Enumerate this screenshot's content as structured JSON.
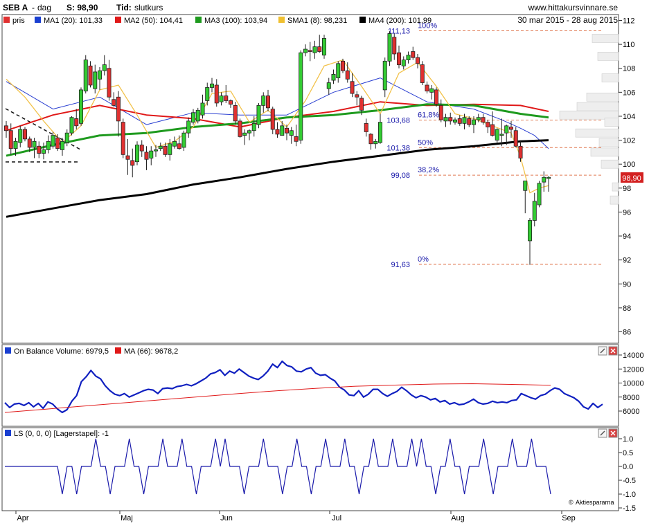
{
  "header": {
    "ticker": "SEB A",
    "separator": "-",
    "interval": "dag",
    "close_label": "S: 98,90",
    "mode_label": "Tid:",
    "mode_value": "slutkurs",
    "site": "www.hittakursvinnare.se",
    "date_range": "30 mar 2015 - 28 aug 2015"
  },
  "legend": [
    {
      "label": "pris",
      "color": "#e03030"
    },
    {
      "label": "MA1 (20): 101,33",
      "color": "#1a3fd1"
    },
    {
      "label": "MA2 (50): 104,41",
      "color": "#e01818"
    },
    {
      "label": "MA3 (100): 103,94",
      "color": "#1e9a1e"
    },
    {
      "label": "SMA1 (8): 98,231",
      "color": "#f0c030"
    },
    {
      "label": "MA4 (200): 101,99",
      "color": "#000000"
    }
  ],
  "colors": {
    "up": "#33cc33",
    "down": "#e03030",
    "ma20": "#2a3fd1",
    "ma50": "#e01818",
    "ma100": "#1e9a1e",
    "sma8": "#f2c24a",
    "ma200": "#000000",
    "obv": "#1020c0",
    "obv_ma": "#e01818",
    "ls": "#1a1aaa",
    "fib_line": "#e07850",
    "fib_text": "#1a1aaa",
    "price_badge": "#d32020"
  },
  "last_price": "98,90",
  "fibonacci": [
    {
      "price": 111.13,
      "price_label": "111,13",
      "pct_label": "100%"
    },
    {
      "price": 103.68,
      "price_label": "103,68",
      "pct_label": "61,8%"
    },
    {
      "price": 101.38,
      "price_label": "101,38",
      "pct_label": "50%"
    },
    {
      "price": 99.08,
      "price_label": "99,08",
      "pct_label": "38,2%"
    },
    {
      "price": 91.63,
      "price_label": "91,63",
      "pct_label": "0%"
    }
  ],
  "x_months": [
    "Apr",
    "Maj",
    "Jun",
    "Jul",
    "Aug",
    "Sep"
  ],
  "obv_panel": {
    "title": "On Balance Volume: 6979,5",
    "ma_title": "MA (66): 9678,2",
    "ticks": [
      "14000",
      "12000",
      "10000",
      "8000",
      "6000"
    ]
  },
  "ls_panel": {
    "title": "LS (0, 0, 0) [Lagerstapel]: -1",
    "ticks": [
      "1.0",
      "0.5",
      "0.0",
      "-0.5",
      "-1.0",
      "-1.5"
    ],
    "credit": "Aktiespararna"
  },
  "chart_data": {
    "type": "candlestick",
    "title": "SEB A - dag",
    "xlabel": "",
    "ylabel": "",
    "y_range": [
      85,
      112
    ],
    "y_ticks": [
      86,
      88,
      90,
      92,
      94,
      96,
      98,
      100,
      102,
      104,
      106,
      108,
      110,
      112
    ],
    "y_tick_labels": [
      "86",
      "88",
      "90",
      "92",
      "94",
      "96",
      "98",
      "100",
      "102",
      "104",
      "106",
      "108",
      "110",
      "112"
    ],
    "last": 98.9,
    "candles": [
      [
        103.2,
        103.6,
        102.2,
        102.8
      ],
      [
        102.8,
        103.4,
        100.8,
        101.3
      ],
      [
        101.3,
        102.2,
        100.7,
        101.9
      ],
      [
        101.8,
        103.2,
        101.4,
        102.9
      ],
      [
        102.9,
        103.1,
        101.9,
        102.1
      ],
      [
        102.1,
        102.3,
        101.0,
        101.4
      ],
      [
        101.4,
        102.2,
        100.5,
        101.9
      ],
      [
        101.5,
        101.9,
        100.5,
        100.9
      ],
      [
        100.9,
        101.8,
        100.4,
        101.2
      ],
      [
        101.2,
        102.4,
        100.9,
        101.9
      ],
      [
        101.5,
        102.7,
        101.3,
        102.4
      ],
      [
        102.2,
        102.5,
        101.1,
        101.3
      ],
      [
        101.2,
        102.2,
        100.7,
        101.9
      ],
      [
        101.8,
        102.9,
        101.5,
        102.6
      ],
      [
        102.6,
        104.0,
        102.4,
        103.9
      ],
      [
        103.8,
        104.6,
        102.9,
        103.2
      ],
      [
        103.4,
        106.4,
        103.2,
        106.2
      ],
      [
        106.1,
        109.1,
        105.9,
        108.7
      ],
      [
        108.2,
        108.6,
        106.4,
        106.6
      ],
      [
        106.3,
        108.3,
        105.9,
        107.7
      ],
      [
        107.1,
        108.1,
        106.2,
        107.8
      ],
      [
        107.8,
        109.1,
        107.4,
        108.3
      ],
      [
        108.0,
        108.7,
        105.3,
        105.6
      ],
      [
        105.4,
        106.0,
        104.8,
        104.9
      ],
      [
        105.6,
        106.1,
        102.3,
        103.6
      ],
      [
        103.5,
        103.8,
        100.5,
        100.8
      ],
      [
        100.7,
        102.1,
        99.1,
        100.4
      ],
      [
        100.3,
        101.3,
        98.9,
        99.9
      ],
      [
        100.2,
        101.9,
        99.9,
        101.6
      ],
      [
        101.6,
        102.0,
        100.6,
        101.1
      ],
      [
        101.0,
        101.5,
        99.5,
        100.4
      ],
      [
        100.5,
        101.5,
        99.9,
        101.1
      ],
      [
        101.1,
        101.6,
        100.6,
        101.2
      ],
      [
        101.3,
        101.8,
        101.1,
        101.5
      ],
      [
        101.5,
        101.8,
        100.6,
        100.8
      ],
      [
        100.8,
        102.1,
        100.3,
        101.7
      ],
      [
        101.5,
        102.3,
        101.3,
        101.9
      ],
      [
        101.7,
        102.4,
        101.2,
        101.3
      ],
      [
        101.4,
        102.8,
        101.1,
        102.6
      ],
      [
        102.6,
        103.9,
        102.2,
        103.6
      ],
      [
        103.5,
        104.6,
        103.3,
        104.3
      ],
      [
        103.6,
        104.7,
        103.4,
        104.5
      ],
      [
        104.1,
        105.8,
        103.8,
        105.1
      ],
      [
        105.3,
        106.8,
        104.9,
        106.4
      ],
      [
        106.4,
        107.2,
        106.0,
        106.7
      ],
      [
        106.6,
        107.1,
        104.8,
        105.1
      ],
      [
        105.2,
        106.0,
        104.9,
        105.7
      ],
      [
        105.7,
        106.6,
        105.1,
        105.3
      ],
      [
        105.3,
        105.4,
        104.7,
        105.0
      ],
      [
        104.9,
        105.2,
        103.3,
        103.6
      ],
      [
        103.6,
        103.8,
        102.2,
        102.3
      ],
      [
        102.4,
        102.9,
        101.6,
        102.6
      ],
      [
        102.6,
        102.9,
        102.0,
        102.8
      ],
      [
        102.8,
        104.0,
        102.3,
        103.4
      ],
      [
        103.3,
        105.1,
        103.0,
        104.9
      ],
      [
        104.9,
        106.0,
        104.3,
        105.7
      ],
      [
        105.7,
        106.2,
        104.4,
        104.7
      ],
      [
        104.6,
        104.8,
        102.5,
        102.9
      ],
      [
        102.9,
        103.5,
        102.2,
        102.5
      ],
      [
        102.4,
        103.6,
        102.4,
        103.2
      ],
      [
        103.0,
        103.3,
        102.0,
        102.6
      ],
      [
        102.4,
        103.1,
        101.7,
        102.8
      ],
      [
        102.3,
        103.3,
        101.5,
        101.9
      ],
      [
        102.0,
        109.5,
        101.7,
        109.3
      ],
      [
        109.3,
        110.0,
        109.0,
        109.6
      ],
      [
        109.5,
        110.2,
        108.6,
        109.4
      ],
      [
        109.3,
        110.3,
        108.8,
        109.8
      ],
      [
        109.8,
        110.8,
        109.3,
        109.4
      ],
      [
        109.1,
        110.8,
        108.8,
        110.5
      ],
      [
        106.3,
        107.2,
        105.8,
        106.8
      ],
      [
        107.0,
        107.9,
        106.7,
        107.5
      ],
      [
        107.2,
        108.6,
        106.8,
        108.4
      ],
      [
        108.6,
        108.8,
        107.6,
        107.8
      ],
      [
        107.8,
        108.5,
        106.8,
        107.1
      ],
      [
        106.9,
        107.6,
        105.6,
        105.9
      ],
      [
        105.8,
        106.1,
        104.9,
        105.6
      ],
      [
        105.5,
        105.7,
        104.1,
        104.5
      ],
      [
        103.4,
        103.8,
        102.3,
        102.7
      ],
      [
        102.5,
        102.6,
        101.2,
        101.7
      ],
      [
        101.7,
        102.1,
        101.3,
        101.9
      ],
      [
        101.8,
        104.2,
        101.7,
        103.5
      ],
      [
        106.2,
        108.9,
        105.6,
        108.6
      ],
      [
        108.6,
        111.1,
        108.2,
        110.9
      ],
      [
        110.6,
        110.9,
        108.7,
        109.2
      ],
      [
        109.3,
        109.9,
        108.0,
        108.3
      ],
      [
        108.2,
        109.0,
        107.9,
        108.7
      ],
      [
        108.7,
        109.4,
        108.4,
        109.1
      ],
      [
        109.4,
        109.8,
        108.7,
        108.9
      ],
      [
        108.9,
        109.2,
        108.0,
        108.4
      ],
      [
        108.3,
        108.6,
        106.6,
        106.8
      ],
      [
        106.6,
        106.9,
        105.9,
        106.1
      ],
      [
        106.0,
        106.6,
        105.4,
        106.3
      ],
      [
        106.2,
        106.4,
        104.8,
        105.0
      ],
      [
        104.9,
        105.4,
        103.5,
        103.7
      ],
      [
        103.6,
        104.2,
        103.1,
        103.9
      ],
      [
        103.9,
        104.3,
        103.3,
        103.6
      ],
      [
        103.5,
        103.9,
        103.3,
        103.7
      ],
      [
        103.8,
        104.1,
        103.2,
        103.4
      ],
      [
        103.4,
        104.2,
        102.9,
        103.9
      ],
      [
        103.8,
        104.0,
        103.1,
        103.3
      ],
      [
        103.3,
        104.0,
        102.6,
        103.7
      ],
      [
        103.7,
        104.2,
        103.5,
        103.9
      ],
      [
        103.9,
        104.2,
        103.3,
        103.5
      ],
      [
        103.5,
        103.7,
        102.6,
        103.1
      ],
      [
        103.3,
        104.4,
        102.3,
        102.4
      ],
      [
        102.0,
        103.0,
        101.8,
        102.9
      ],
      [
        102.4,
        103.8,
        101.5,
        102.5
      ],
      [
        102.6,
        103.3,
        101.6,
        103.2
      ],
      [
        103.1,
        103.6,
        102.2,
        102.9
      ],
      [
        102.8,
        103.1,
        101.4,
        101.5
      ],
      [
        101.5,
        101.9,
        100.2,
        100.5
      ],
      [
        97.8,
        98.4,
        95.9,
        98.6
      ],
      [
        93.6,
        95.5,
        91.6,
        95.3
      ],
      [
        95.3,
        97.6,
        94.8,
        96.9
      ],
      [
        96.6,
        98.6,
        96.4,
        98.4
      ],
      [
        98.5,
        99.4,
        97.7,
        98.9
      ],
      [
        98.8,
        99.0,
        97.7,
        98.9
      ]
    ],
    "series": [
      {
        "name": "MA1 (20)",
        "x": [
          0,
          10,
          20,
          30,
          40,
          50,
          60,
          70,
          80,
          90,
          100,
          106,
          110,
          113,
          116
        ],
        "values": [
          106.9,
          104.6,
          105.6,
          103.3,
          104.3,
          104.1,
          104.1,
          106.0,
          107.2,
          105.2,
          104.6,
          103.7,
          103.0,
          102.4,
          101.3
        ]
      },
      {
        "name": "MA2 (50)",
        "x": [
          0,
          10,
          20,
          30,
          40,
          50,
          60,
          70,
          80,
          90,
          100,
          110,
          116
        ],
        "values": [
          102.8,
          104.1,
          104.9,
          104.1,
          103.8,
          103.1,
          103.9,
          104.4,
          105.2,
          104.9,
          105.0,
          104.9,
          104.4
        ]
      },
      {
        "name": "MA3 (100)",
        "x": [
          0,
          10,
          20,
          30,
          40,
          50,
          60,
          70,
          80,
          90,
          100,
          110,
          116
        ],
        "values": [
          100.7,
          101.6,
          102.4,
          102.6,
          103.1,
          103.4,
          103.9,
          104.1,
          104.5,
          105.0,
          104.9,
          104.2,
          103.9
        ]
      },
      {
        "name": "SMA1 (8)",
        "x": [
          0,
          4,
          8,
          12,
          16,
          20,
          24,
          28,
          32,
          36,
          40,
          44,
          48,
          52,
          56,
          60,
          64,
          68,
          72,
          76,
          80,
          84,
          88,
          92,
          96,
          100,
          104,
          108,
          110,
          112,
          114,
          116
        ],
        "values": [
          107.1,
          105.6,
          103.6,
          101.8,
          103.2,
          106.2,
          106.6,
          104.1,
          101.4,
          101.9,
          103.1,
          105.9,
          106.1,
          103.5,
          104.5,
          103.1,
          105.3,
          108.2,
          108.7,
          106.5,
          104.2,
          107.6,
          108.5,
          106.5,
          104.2,
          103.8,
          103.2,
          102.6,
          100.6,
          97.6,
          98.0,
          98.2
        ]
      },
      {
        "name": "MA4 (200)",
        "x": [
          0,
          10,
          20,
          30,
          40,
          50,
          60,
          70,
          80,
          90,
          100,
          110,
          116
        ],
        "values": [
          95.6,
          96.3,
          97.0,
          97.5,
          98.3,
          98.9,
          99.6,
          100.2,
          100.7,
          101.2,
          101.5,
          101.9,
          102.0
        ]
      }
    ],
    "obv": {
      "ylim": [
        5000,
        14500
      ],
      "values": [
        7200,
        6500,
        7000,
        7100,
        6800,
        7200,
        6600,
        7100,
        6400,
        7300,
        7000,
        6300,
        5800,
        6200,
        7400,
        8200,
        10200,
        10900,
        11800,
        11000,
        10600,
        9600,
        8900,
        8400,
        8200,
        8500,
        8000,
        8300,
        8600,
        8900,
        9100,
        9000,
        8500,
        9200,
        9300,
        9200,
        9500,
        9600,
        9800,
        9600,
        9900,
        10300,
        10700,
        11300,
        11500,
        11900,
        11100,
        11700,
        11400,
        12000,
        11500,
        11000,
        10700,
        10500,
        11000,
        11700,
        12700,
        12200,
        13100,
        12500,
        12300,
        11700,
        11600,
        12000,
        12200,
        11400,
        11100,
        11200,
        10700,
        10300,
        9400,
        9000,
        8300,
        8200,
        8900,
        8000,
        8400,
        9100,
        9100,
        8500,
        8100,
        8500,
        8800,
        9400,
        8900,
        8300,
        7900,
        8200,
        8000,
        7600,
        7800,
        7300,
        7500,
        7000,
        7200,
        6900,
        7000,
        7300,
        7700,
        7200,
        7000,
        7100,
        7400,
        7200,
        7300,
        7200,
        7500,
        7600,
        8500,
        8200,
        7900,
        7700,
        8200,
        8400,
        8900,
        9300,
        9100,
        8500,
        8200,
        7900,
        7400,
        6600,
        6300,
        7100,
        6500,
        6980
      ],
      "ma": [
        5800,
        6250,
        6700,
        7150,
        7600,
        8050,
        8500,
        8900,
        9250,
        9550,
        9700,
        9850,
        9900,
        9800,
        9678
      ]
    },
    "ls": [
      0,
      0,
      0,
      0,
      0,
      0,
      0,
      0,
      0,
      0,
      0,
      0,
      -1,
      0,
      0,
      -1,
      0,
      0,
      0,
      1,
      0,
      0,
      -1,
      0,
      0,
      0,
      1,
      0,
      0,
      -1,
      0,
      0,
      0,
      1,
      0,
      0,
      0,
      1,
      0,
      0,
      -1,
      0,
      0,
      0,
      1,
      0,
      1,
      0,
      0,
      0,
      -1,
      0,
      0,
      0,
      1,
      0,
      0,
      0,
      -1,
      0,
      0,
      1,
      0,
      0,
      -1,
      0,
      0,
      1,
      0,
      0,
      0,
      1,
      0,
      0,
      -1,
      0,
      0,
      1,
      0,
      0,
      0,
      1,
      0,
      0,
      0,
      1,
      0,
      1,
      0,
      0,
      -1,
      0,
      0,
      1,
      0,
      0,
      -1,
      0,
      0,
      0,
      1,
      0,
      -1,
      0,
      0,
      0,
      1,
      0,
      0,
      0,
      1,
      0,
      0,
      0,
      -1
    ]
  }
}
